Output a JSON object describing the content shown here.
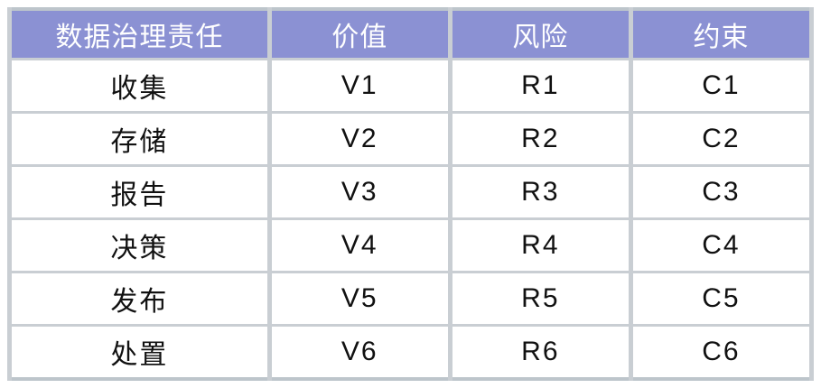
{
  "chart_data": {
    "type": "table",
    "columns": [
      "数据治理责任",
      "价值",
      "风险",
      "约束"
    ],
    "rows": [
      [
        "收集",
        "V1",
        "R1",
        "C1"
      ],
      [
        "存储",
        "V2",
        "R2",
        "C2"
      ],
      [
        "报告",
        "V3",
        "R3",
        "C3"
      ],
      [
        "决策",
        "V4",
        "R4",
        "C4"
      ],
      [
        "发布",
        "V5",
        "R5",
        "C5"
      ],
      [
        "处置",
        "V6",
        "R6",
        "C6"
      ]
    ],
    "layout": {
      "grid": "on",
      "header_position": "top"
    }
  },
  "colors": {
    "header_bg": "#8b91d3",
    "header_text": "#ffffff",
    "border": "#c9ced3",
    "outer_border": "#bdc5cb",
    "body_bg": "#ffffff",
    "body_text": "#111111"
  }
}
